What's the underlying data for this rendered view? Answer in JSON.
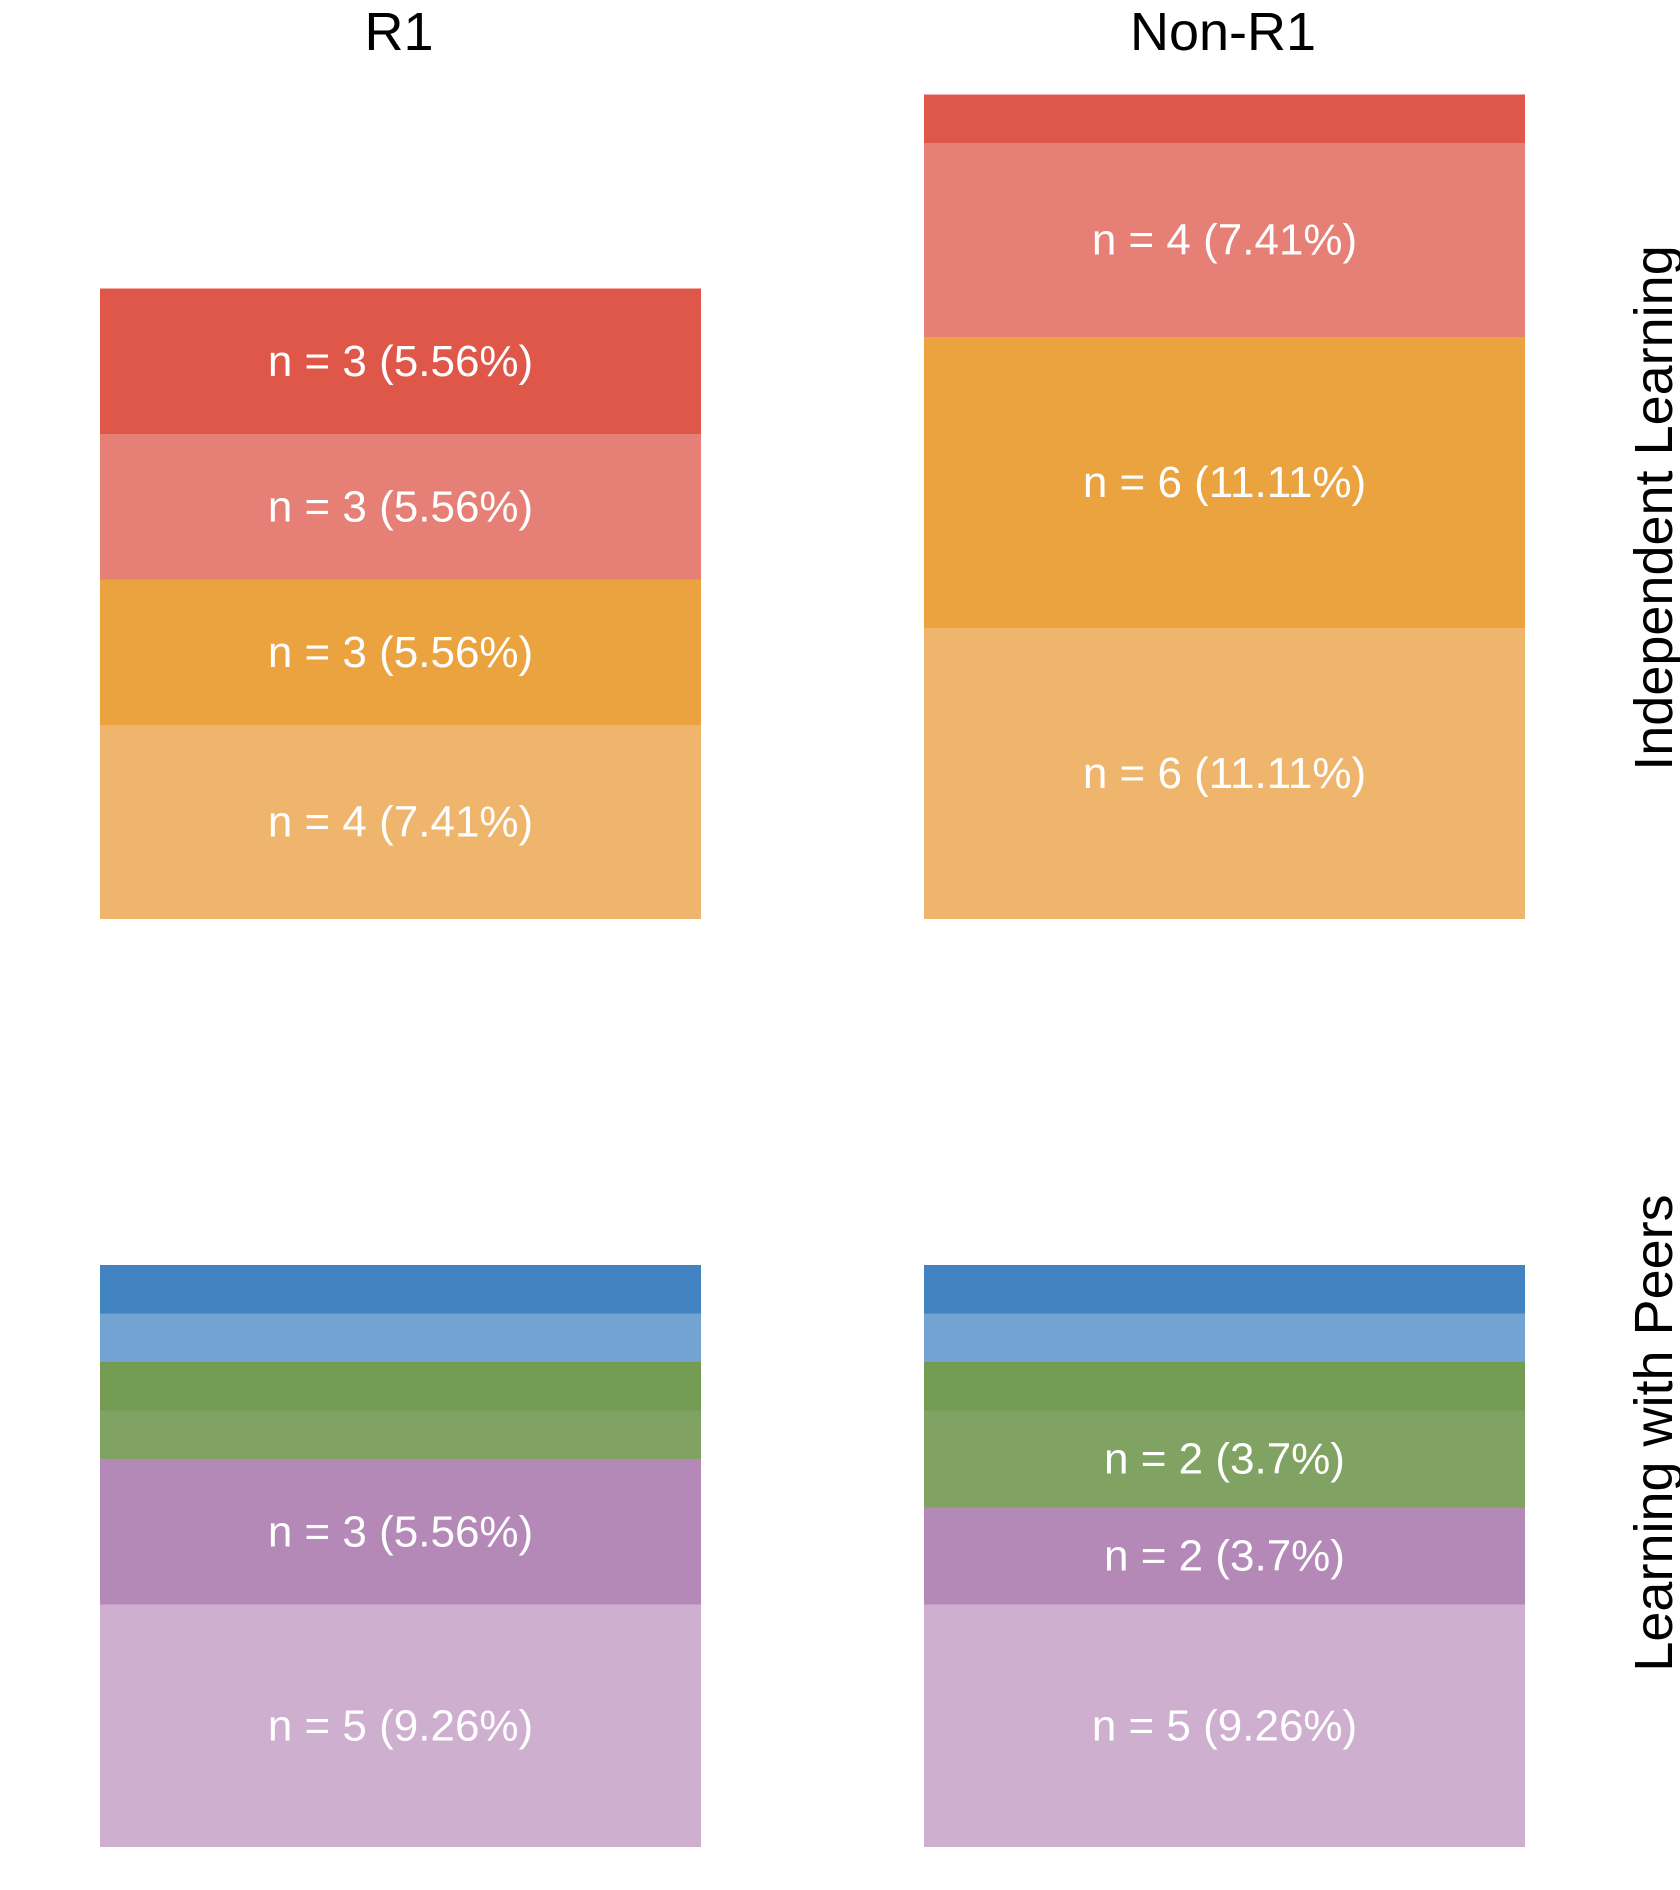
{
  "chart_data": {
    "type": "bar",
    "stacked": true,
    "columns": [
      "R1",
      "Non-R1"
    ],
    "rows": [
      "Independent Learning",
      "Learning with Peers"
    ],
    "panels": [
      {
        "row": "Independent Learning",
        "column": "R1",
        "segments": [
          {
            "n": 3,
            "color": "#df5748",
            "label": "n = 3 (5.56%)"
          },
          {
            "n": 3,
            "color": "#e67f76",
            "label": "n = 3 (5.56%)"
          },
          {
            "n": 3,
            "color": "#eaa33e",
            "label": "n = 3 (5.56%)"
          },
          {
            "n": 4,
            "color": "#efb56c",
            "label": "n = 4 (7.41%)"
          }
        ]
      },
      {
        "row": "Independent Learning",
        "column": "Non-R1",
        "segments": [
          {
            "n": 1,
            "color": "#df5748",
            "label": ""
          },
          {
            "n": 4,
            "color": "#e67f76",
            "label": "n = 4 (7.41%)"
          },
          {
            "n": 6,
            "color": "#eaa33e",
            "label": "n = 6 (11.11%)"
          },
          {
            "n": 6,
            "color": "#efb56c",
            "label": "n = 6 (11.11%)"
          }
        ]
      },
      {
        "row": "Learning with Peers",
        "column": "R1",
        "segments": [
          {
            "n": 1,
            "color": "#4283c2",
            "label": ""
          },
          {
            "n": 1,
            "color": "#72a3d3",
            "label": ""
          },
          {
            "n": 1,
            "color": "#739b51",
            "label": ""
          },
          {
            "n": 1,
            "color": "#80a262",
            "label": ""
          },
          {
            "n": 3,
            "color": "#b489b8",
            "label": "n = 3 (5.56%)"
          },
          {
            "n": 5,
            "color": "#cfafcf",
            "label": "n = 5 (9.26%)"
          }
        ]
      },
      {
        "row": "Learning with Peers",
        "column": "Non-R1",
        "segments": [
          {
            "n": 1,
            "color": "#4283c2",
            "label": ""
          },
          {
            "n": 1,
            "color": "#72a3d3",
            "label": ""
          },
          {
            "n": 1,
            "color": "#739b51",
            "label": ""
          },
          {
            "n": 2,
            "color": "#80a262",
            "label": "n = 2 (3.7%)"
          },
          {
            "n": 2,
            "color": "#b489b8",
            "label": "n = 2 (3.7%)"
          },
          {
            "n": 5,
            "color": "#cfafcf",
            "label": "n = 5 (9.26%)"
          }
        ]
      }
    ],
    "title": "",
    "xlabel": "",
    "ylabel": "",
    "grid": false,
    "legend": "none"
  }
}
